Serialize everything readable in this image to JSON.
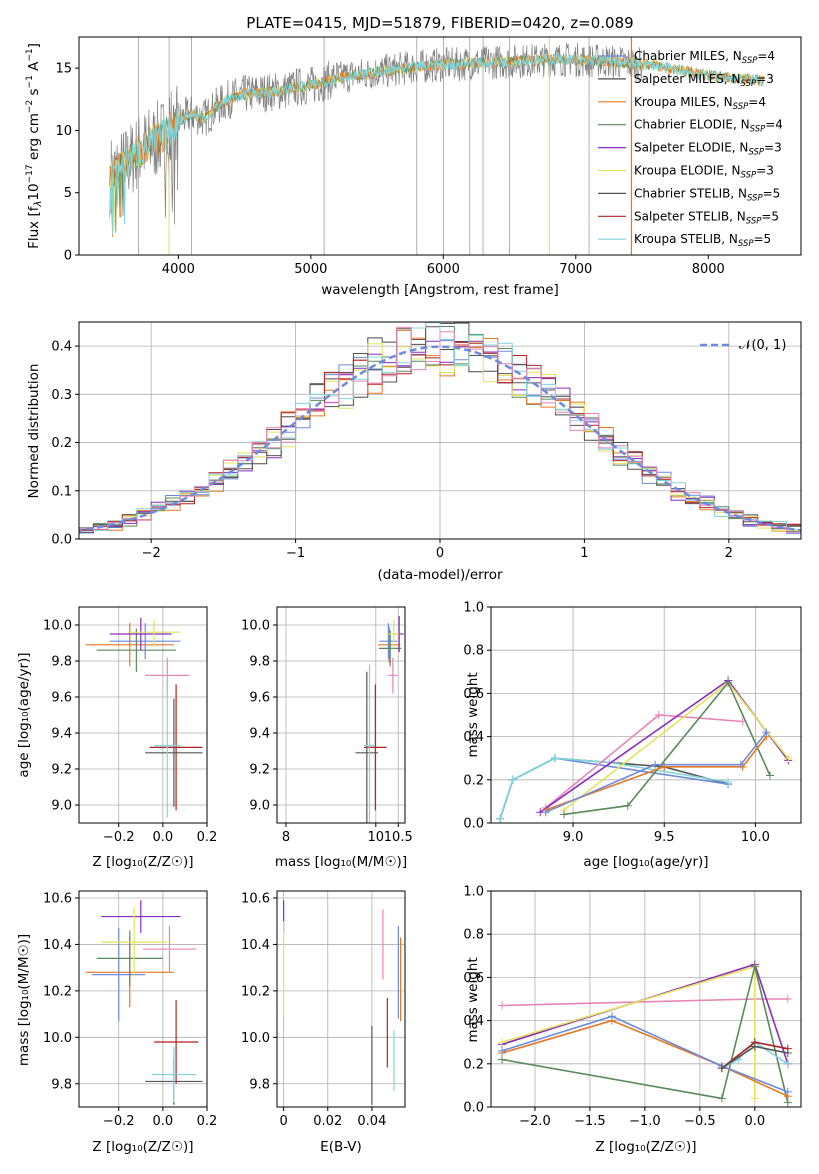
{
  "colors": {
    "chabrier_miles": "#6d8bdc",
    "salpeter_miles": "#4a4a4a",
    "kroupa_miles": "#e87722",
    "chabrier_elodie": "#5a8a5a",
    "salpeter_elodie": "#8a2bbf",
    "kroupa_elodie": "#e4e45a",
    "chabrier_stelib": "#555555",
    "salpeter_stelib": "#b22222",
    "kroupa_stelib": "#7fd6dc",
    "observed": "#808080",
    "pink": "#e884b8",
    "normal": "#6d8bdc"
  },
  "chart_data": [
    {
      "type": "line",
      "title": "PLATE=0415, MJD=51879, FIBERID=0420, z=0.089",
      "xlabel": "wavelength [Angstrom, rest frame]",
      "ylabel": "Flux [fλ10⁻¹⁷ erg cm⁻² s⁻¹ A⁻¹]",
      "xlim": [
        3250,
        8700
      ],
      "ylim": [
        0,
        17.5
      ],
      "xticks": [
        4000,
        5000,
        6000,
        7000,
        8000
      ],
      "yticks": [
        0,
        5,
        10,
        15
      ],
      "legend_position": "right",
      "legend": [
        {
          "label": "Chabrier MILES, N",
          "sub": "SSP",
          "tail": "=4",
          "color_key": "chabrier_miles"
        },
        {
          "label": "Salpeter MILES, N",
          "sub": "SSP",
          "tail": "=3",
          "color_key": "salpeter_miles"
        },
        {
          "label": "Kroupa MILES, N",
          "sub": "SSP",
          "tail": "=4",
          "color_key": "kroupa_miles"
        },
        {
          "label": "Chabrier ELODIE, N",
          "sub": "SSP",
          "tail": "=4",
          "color_key": "chabrier_elodie"
        },
        {
          "label": "Salpeter ELODIE, N",
          "sub": "SSP",
          "tail": "=3",
          "color_key": "salpeter_elodie"
        },
        {
          "label": "Kroupa ELODIE, N",
          "sub": "SSP",
          "tail": "=3",
          "color_key": "kroupa_elodie"
        },
        {
          "label": "Chabrier STELIB, N",
          "sub": "SSP",
          "tail": "=5",
          "color_key": "chabrier_stelib"
        },
        {
          "label": "Salpeter STELIB, N",
          "sub": "SSP",
          "tail": "=5",
          "color_key": "salpeter_stelib"
        },
        {
          "label": "Kroupa STELIB, N",
          "sub": "SSP",
          "tail": "=5",
          "color_key": "kroupa_stelib"
        }
      ],
      "x": [
        3500,
        3600,
        3700,
        3800,
        3900,
        4000,
        4100,
        4200,
        4300,
        4400,
        4500,
        4600,
        4700,
        4800,
        4900,
        5000,
        5100,
        5200,
        5300,
        5400,
        5500,
        5600,
        5700,
        5800,
        5900,
        6000,
        6100,
        6200,
        6300,
        6400,
        6500,
        6600,
        6700,
        6800,
        6900,
        7000,
        7100,
        7200,
        7300,
        7400,
        7500,
        7600,
        7700,
        7800,
        7900,
        8000,
        8100,
        8200,
        8300,
        8400
      ],
      "model_y": [
        6.5,
        7.2,
        8.3,
        9.0,
        9.6,
        10.8,
        11.3,
        11.0,
        12.0,
        12.6,
        12.9,
        13.0,
        13.1,
        13.2,
        13.5,
        13.6,
        13.9,
        14.2,
        14.4,
        14.5,
        14.7,
        14.8,
        15.0,
        15.1,
        15.2,
        15.3,
        15.3,
        15.4,
        15.4,
        15.5,
        15.5,
        15.6,
        15.6,
        15.7,
        15.7,
        15.7,
        15.6,
        15.6,
        15.5,
        15.4,
        15.3,
        15.2,
        15.0,
        14.8,
        14.6,
        14.4,
        14.3,
        14.2,
        14.1,
        14.0
      ],
      "observed_spikes": [
        3700,
        3930,
        4100,
        5100,
        5800,
        6000,
        6200,
        6300,
        6500,
        6800,
        7100,
        7420
      ]
    },
    {
      "type": "bar",
      "xlabel": "(data-model)/error",
      "ylabel": "Normed distribution",
      "xlim": [
        -2.5,
        2.5
      ],
      "ylim": [
        0,
        0.45
      ],
      "xticks": [
        -2,
        -1,
        0,
        1,
        2
      ],
      "yticks": [
        0.0,
        0.1,
        0.2,
        0.3,
        0.4
      ],
      "legend_label": "𝒩(0, 1)",
      "bin_width": 0.1,
      "gauss_sigma": 1,
      "gauss_mean": 0
    },
    {
      "type": "scatter",
      "xlabel": "Z [log₁₀(Z/Z☉)]",
      "ylabel": "age  [log₁₀(age/yr)]",
      "xlim": [
        -0.38,
        0.2
      ],
      "ylim": [
        8.9,
        10.1
      ],
      "xticks": [
        -0.2,
        0.0,
        0.2
      ],
      "yticks": [
        9.0,
        9.2,
        9.4,
        9.6,
        9.8,
        10.0
      ],
      "points": [
        {
          "x": -0.15,
          "y": 9.89,
          "xerr": 0.2,
          "yerr": 0.12,
          "color_key": "kroupa_miles"
        },
        {
          "x": -0.08,
          "y": 9.91,
          "xerr": 0.16,
          "yerr": 0.1,
          "color_key": "chabrier_miles"
        },
        {
          "x": -0.12,
          "y": 9.86,
          "xerr": 0.18,
          "yerr": 0.12,
          "color_key": "chabrier_elodie"
        },
        {
          "x": -0.1,
          "y": 9.95,
          "xerr": 0.14,
          "yerr": 0.09,
          "color_key": "salpeter_elodie"
        },
        {
          "x": -0.04,
          "y": 9.96,
          "xerr": 0.12,
          "yerr": 0.07,
          "color_key": "kroupa_elodie"
        },
        {
          "x": 0.02,
          "y": 9.72,
          "xerr": 0.1,
          "yerr": 0.1,
          "color_key": "pink"
        },
        {
          "x": 0.06,
          "y": 9.32,
          "xerr": 0.12,
          "yerr": 0.35,
          "color_key": "salpeter_stelib"
        },
        {
          "x": 0.05,
          "y": 9.29,
          "xerr": 0.13,
          "yerr": 0.3,
          "color_key": "chabrier_stelib"
        },
        {
          "x": 0.02,
          "y": 9.33,
          "xerr": 0.06,
          "yerr": 0.4,
          "color_key": "kroupa_stelib"
        }
      ]
    },
    {
      "type": "scatter",
      "xlabel": "mass [log₁₀(M/M☉)]",
      "ylabel": "",
      "xlim": [
        7.8,
        10.65
      ],
      "ylim": [
        8.9,
        10.1
      ],
      "xticks": [
        8,
        10,
        10.5
      ],
      "yticks": [
        9.0,
        9.2,
        9.4,
        9.6,
        9.8,
        10.0
      ],
      "points": [
        {
          "x": 10.3,
          "y": 9.89,
          "xerr": 0.25,
          "yerr": 0.1,
          "color_key": "kroupa_miles"
        },
        {
          "x": 10.28,
          "y": 9.91,
          "xerr": 0.2,
          "yerr": 0.1,
          "color_key": "chabrier_miles"
        },
        {
          "x": 10.32,
          "y": 9.87,
          "xerr": 0.25,
          "yerr": 0.1,
          "color_key": "chabrier_elodie"
        },
        {
          "x": 10.52,
          "y": 9.95,
          "xerr": 0.1,
          "yerr": 0.1,
          "color_key": "salpeter_elodie"
        },
        {
          "x": 10.4,
          "y": 9.95,
          "xerr": 0.12,
          "yerr": 0.08,
          "color_key": "kroupa_elodie"
        },
        {
          "x": 10.38,
          "y": 9.72,
          "xerr": 0.1,
          "yerr": 0.1,
          "color_key": "pink"
        },
        {
          "x": 9.99,
          "y": 9.32,
          "xerr": 0.25,
          "yerr": 0.35,
          "color_key": "salpeter_stelib"
        },
        {
          "x": 9.8,
          "y": 9.29,
          "xerr": 0.25,
          "yerr": 0.45,
          "color_key": "chabrier_stelib"
        },
        {
          "x": 9.86,
          "y": 9.33,
          "xerr": 0.12,
          "yerr": 0.45,
          "color_key": "kroupa_stelib"
        }
      ]
    },
    {
      "type": "line",
      "xlabel": "age  [log₁₀(age/yr)]",
      "ylabel": "mass weight",
      "xlim": [
        8.55,
        10.25
      ],
      "ylim": [
        0,
        1
      ],
      "xticks": [
        9.0,
        9.5,
        10.0
      ],
      "yticks": [
        0.0,
        0.2,
        0.4,
        0.6,
        0.8,
        1.0
      ],
      "series": [
        {
          "color_key": "chabrier_stelib",
          "x": [
            8.6,
            8.67,
            8.9,
            9.5,
            9.85
          ],
          "y": [
            0.02,
            0.2,
            0.3,
            0.26,
            0.18
          ]
        },
        {
          "color_key": "chabrier_miles",
          "x": [
            8.6,
            8.67,
            8.9,
            9.85
          ],
          "y": [
            0.02,
            0.2,
            0.3,
            0.18
          ]
        },
        {
          "color_key": "kroupa_stelib",
          "x": [
            8.6,
            8.67,
            8.9,
            9.2,
            9.85
          ],
          "y": [
            0.02,
            0.2,
            0.3,
            0.28,
            0.19
          ]
        },
        {
          "color_key": "pink",
          "x": [
            8.85,
            9.47,
            9.93
          ],
          "y": [
            0.07,
            0.5,
            0.47
          ]
        },
        {
          "color_key": "salpeter_elodie",
          "x": [
            8.82,
            9.85,
            10.18
          ],
          "y": [
            0.05,
            0.66,
            0.29
          ]
        },
        {
          "color_key": "kroupa_elodie",
          "x": [
            8.95,
            9.85,
            10.18
          ],
          "y": [
            0.06,
            0.65,
            0.3
          ]
        },
        {
          "color_key": "chabrier_elodie",
          "x": [
            8.95,
            9.3,
            9.85,
            10.08
          ],
          "y": [
            0.04,
            0.08,
            0.65,
            0.22
          ]
        },
        {
          "color_key": "kroupa_miles",
          "x": [
            8.85,
            9.5,
            9.93,
            10.06
          ],
          "y": [
            0.06,
            0.26,
            0.26,
            0.4
          ]
        },
        {
          "color_key": "chabrier_miles",
          "x": [
            8.85,
            9.45,
            9.92,
            10.06
          ],
          "y": [
            0.05,
            0.27,
            0.27,
            0.42
          ]
        }
      ]
    },
    {
      "type": "scatter",
      "xlabel": "Z [log₁₀(Z/Z☉)]",
      "ylabel": "mass [log₁₀(M/M☉)]",
      "xlim": [
        -0.38,
        0.2
      ],
      "ylim": [
        9.7,
        10.63
      ],
      "xticks": [
        -0.2,
        0.0,
        0.2
      ],
      "yticks": [
        9.8,
        10.0,
        10.2,
        10.4,
        10.6
      ],
      "points": [
        {
          "x": -0.15,
          "y": 10.28,
          "xerr": 0.2,
          "yerr": 0.15,
          "color_key": "kroupa_miles"
        },
        {
          "x": -0.2,
          "y": 10.27,
          "xerr": 0.12,
          "yerr": 0.2,
          "color_key": "chabrier_miles"
        },
        {
          "x": -0.15,
          "y": 10.34,
          "xerr": 0.15,
          "yerr": 0.12,
          "color_key": "chabrier_elodie"
        },
        {
          "x": -0.1,
          "y": 10.52,
          "xerr": 0.18,
          "yerr": 0.07,
          "color_key": "salpeter_elodie"
        },
        {
          "x": -0.13,
          "y": 10.41,
          "xerr": 0.15,
          "yerr": 0.15,
          "color_key": "kroupa_elodie"
        },
        {
          "x": 0.03,
          "y": 10.38,
          "xerr": 0.12,
          "yerr": 0.1,
          "color_key": "pink"
        },
        {
          "x": 0.06,
          "y": 9.98,
          "xerr": 0.1,
          "yerr": 0.18,
          "color_key": "salpeter_stelib"
        },
        {
          "x": 0.05,
          "y": 9.81,
          "xerr": 0.13,
          "yerr": 0.1,
          "color_key": "chabrier_stelib"
        },
        {
          "x": 0.05,
          "y": 9.84,
          "xerr": 0.1,
          "yerr": 0.12,
          "color_key": "kroupa_stelib"
        }
      ]
    },
    {
      "type": "scatter",
      "xlabel": "E(B-V)",
      "ylabel": "",
      "xlim": [
        -0.003,
        0.055
      ],
      "ylim": [
        9.7,
        10.63
      ],
      "xticks": [
        0.0,
        0.02,
        0.04
      ],
      "yticks": [
        9.8,
        10.0,
        10.2,
        10.4,
        10.6
      ],
      "points": [
        {
          "x": 0.0,
          "y": 10.52,
          "yerr": 0.07,
          "color_key": "salpeter_elodie"
        },
        {
          "x": 0.0,
          "y": 10.3,
          "yerr": 0.2,
          "color_key": "kroupa_elodie"
        },
        {
          "x": 0.04,
          "y": 9.88,
          "yerr": 0.17,
          "color_key": "chabrier_stelib"
        },
        {
          "x": 0.045,
          "y": 10.4,
          "yerr": 0.15,
          "color_key": "pink"
        },
        {
          "x": 0.047,
          "y": 10.02,
          "yerr": 0.15,
          "color_key": "salpeter_stelib"
        },
        {
          "x": 0.05,
          "y": 9.9,
          "yerr": 0.13,
          "color_key": "kroupa_stelib"
        },
        {
          "x": 0.052,
          "y": 10.28,
          "yerr": 0.2,
          "color_key": "chabrier_miles"
        },
        {
          "x": 0.053,
          "y": 10.25,
          "yerr": 0.18,
          "color_key": "kroupa_miles"
        }
      ]
    },
    {
      "type": "line",
      "xlabel": "Z [log₁₀(Z/Z☉)]",
      "ylabel": "mass weight",
      "xlim": [
        -2.4,
        0.42
      ],
      "ylim": [
        0,
        1
      ],
      "xticks": [
        -2.0,
        -1.5,
        -1.0,
        -0.5,
        0.0
      ],
      "yticks": [
        0.0,
        0.2,
        0.4,
        0.6,
        0.8,
        1.0
      ],
      "series": [
        {
          "color_key": "pink",
          "x": [
            -2.3,
            0.0,
            0.3
          ],
          "y": [
            0.47,
            0.5,
            0.5
          ]
        },
        {
          "color_key": "salpeter_elodie",
          "x": [
            -2.3,
            0.0,
            0.3
          ],
          "y": [
            0.29,
            0.66,
            0.2
          ]
        },
        {
          "color_key": "kroupa_elodie",
          "x": [
            -2.3,
            0.0,
            0.0
          ],
          "y": [
            0.3,
            0.65,
            0.04
          ]
        },
        {
          "color_key": "chabrier_elodie",
          "x": [
            -2.3,
            -0.3,
            0.0,
            0.3
          ],
          "y": [
            0.22,
            0.04,
            0.65,
            0.02
          ]
        },
        {
          "color_key": "kroupa_miles",
          "x": [
            -2.3,
            -1.3,
            -0.3,
            0.3
          ],
          "y": [
            0.25,
            0.4,
            0.19,
            0.05
          ]
        },
        {
          "color_key": "chabrier_miles",
          "x": [
            -2.3,
            -1.3,
            -0.3,
            0.3
          ],
          "y": [
            0.26,
            0.42,
            0.19,
            0.07
          ]
        },
        {
          "color_key": "kroupa_stelib",
          "x": [
            -0.3,
            -0.15,
            0.0,
            0.3
          ],
          "y": [
            0.18,
            0.22,
            0.3,
            0.2
          ]
        },
        {
          "color_key": "salpeter_stelib",
          "x": [
            -0.3,
            0.0,
            0.3
          ],
          "y": [
            0.18,
            0.3,
            0.27
          ]
        },
        {
          "color_key": "chabrier_stelib",
          "x": [
            -0.3,
            0.0,
            0.3
          ],
          "y": [
            0.18,
            0.28,
            0.25
          ]
        }
      ]
    }
  ]
}
